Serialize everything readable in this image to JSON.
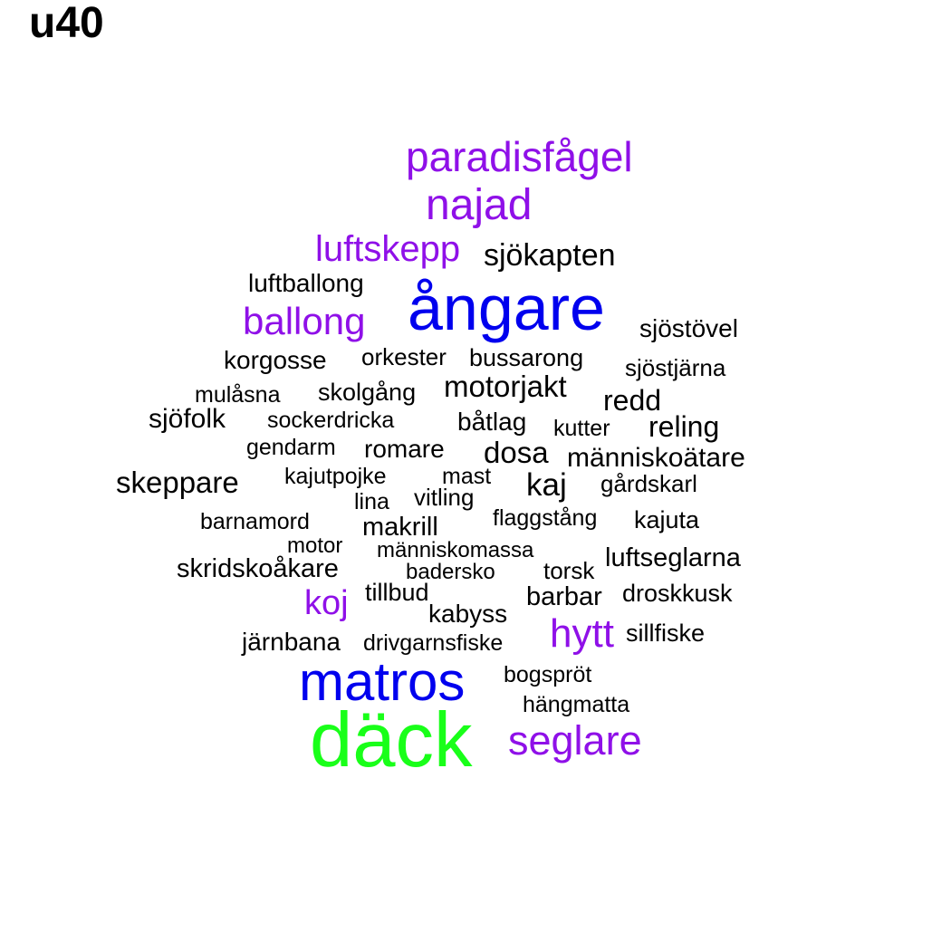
{
  "title": "u40",
  "colors": {
    "black": "#000000",
    "purple": "#8f10e8",
    "blue": "#0000ee",
    "green": "#19ff19"
  },
  "words": [
    {
      "text": "paradisfågel",
      "color": "purple"
    },
    {
      "text": "najad",
      "color": "purple"
    },
    {
      "text": "luftskepp",
      "color": "purple"
    },
    {
      "text": "sjökapten",
      "color": "black"
    },
    {
      "text": "luftballong",
      "color": "black"
    },
    {
      "text": "ångare",
      "color": "blue"
    },
    {
      "text": "ballong",
      "color": "purple"
    },
    {
      "text": "sjöstövel",
      "color": "black"
    },
    {
      "text": "korgosse",
      "color": "black"
    },
    {
      "text": "orkester",
      "color": "black"
    },
    {
      "text": "bussarong",
      "color": "black"
    },
    {
      "text": "sjöstjärna",
      "color": "black"
    },
    {
      "text": "mulåsna",
      "color": "black"
    },
    {
      "text": "skolgång",
      "color": "black"
    },
    {
      "text": "motorjakt",
      "color": "black"
    },
    {
      "text": "redd",
      "color": "black"
    },
    {
      "text": "sjöfolk",
      "color": "black"
    },
    {
      "text": "sockerdricka",
      "color": "black"
    },
    {
      "text": "båtlag",
      "color": "black"
    },
    {
      "text": "kutter",
      "color": "black"
    },
    {
      "text": "reling",
      "color": "black"
    },
    {
      "text": "gendarm",
      "color": "black"
    },
    {
      "text": "romare",
      "color": "black"
    },
    {
      "text": "dosa",
      "color": "black"
    },
    {
      "text": "människoätare",
      "color": "black"
    },
    {
      "text": "skeppare",
      "color": "black"
    },
    {
      "text": "kajutpojke",
      "color": "black"
    },
    {
      "text": "mast",
      "color": "black"
    },
    {
      "text": "kaj",
      "color": "black"
    },
    {
      "text": "gårdskarl",
      "color": "black"
    },
    {
      "text": "lina",
      "color": "black"
    },
    {
      "text": "vitling",
      "color": "black"
    },
    {
      "text": "barnamord",
      "color": "black"
    },
    {
      "text": "makrill",
      "color": "black"
    },
    {
      "text": "flaggstång",
      "color": "black"
    },
    {
      "text": "kajuta",
      "color": "black"
    },
    {
      "text": "motor",
      "color": "black"
    },
    {
      "text": "människomassa",
      "color": "black"
    },
    {
      "text": "skridskoåkare",
      "color": "black"
    },
    {
      "text": "badersko",
      "color": "black"
    },
    {
      "text": "torsk",
      "color": "black"
    },
    {
      "text": "luftseglarna",
      "color": "black"
    },
    {
      "text": "koj",
      "color": "purple"
    },
    {
      "text": "tillbud",
      "color": "black"
    },
    {
      "text": "barbar",
      "color": "black"
    },
    {
      "text": "droskkusk",
      "color": "black"
    },
    {
      "text": "kabyss",
      "color": "black"
    },
    {
      "text": "hytt",
      "color": "purple"
    },
    {
      "text": "sillfiske",
      "color": "black"
    },
    {
      "text": "järnbana",
      "color": "black"
    },
    {
      "text": "drivgarnsfiske",
      "color": "black"
    },
    {
      "text": "matros",
      "color": "blue"
    },
    {
      "text": "bogspröt",
      "color": "black"
    },
    {
      "text": "hängmatta",
      "color": "black"
    },
    {
      "text": "däck",
      "color": "green"
    },
    {
      "text": "seglare",
      "color": "purple"
    }
  ]
}
